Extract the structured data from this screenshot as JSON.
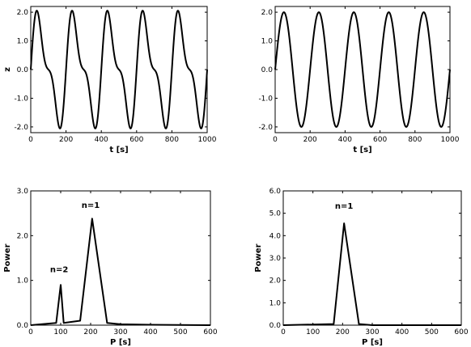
{
  "chart_data": [
    {
      "type": "line",
      "xlabel": "t [s]",
      "ylabel": "z",
      "xlim": [
        0,
        1000
      ],
      "ylim": [
        -2.2,
        2.2
      ],
      "xticks": [
        0,
        200,
        400,
        600,
        800,
        1000
      ],
      "xtick_labels": [
        "0",
        "200",
        "400",
        "600",
        "800",
        "1000"
      ],
      "yticks": [
        -2.0,
        -1.0,
        0.0,
        1.0,
        2.0
      ],
      "ytick_labels": [
        "-2.0",
        "-1.0",
        "0.0",
        "1.0",
        "2.0"
      ],
      "grid": false,
      "series": [
        {
          "components": [
            {
              "amplitude": 1.65,
              "period": 200
            },
            {
              "amplitude": 0.72,
              "period": 100
            }
          ],
          "t_range": [
            0,
            1000
          ]
        }
      ]
    },
    {
      "type": "line",
      "xlabel": "t [s]",
      "ylabel": "",
      "xlim": [
        0,
        1000
      ],
      "ylim": [
        -2.2,
        2.2
      ],
      "xticks": [
        0,
        200,
        400,
        600,
        800,
        1000
      ],
      "xtick_labels": [
        "0",
        "200",
        "400",
        "600",
        "800",
        "1000"
      ],
      "yticks": [
        -2.0,
        -1.0,
        0.0,
        1.0,
        2.0
      ],
      "ytick_labels": [
        "-2.0",
        "-1.0",
        "0.0",
        "1.0",
        "2.0"
      ],
      "grid": false,
      "series": [
        {
          "components": [
            {
              "amplitude": 2.0,
              "period": 200
            }
          ],
          "t_range": [
            0,
            1000
          ]
        }
      ]
    },
    {
      "type": "line",
      "xlabel": "P [s]",
      "ylabel": "Power",
      "xlim": [
        0,
        600
      ],
      "ylim": [
        0,
        3.0
      ],
      "xticks": [
        0,
        100,
        200,
        300,
        400,
        500,
        600
      ],
      "xtick_labels": [
        "0",
        "100",
        "200",
        "300",
        "400",
        "500",
        "600"
      ],
      "yticks": [
        0.0,
        1.0,
        2.0,
        3.0
      ],
      "ytick_labels": [
        "0.0",
        "1.0",
        "2.0",
        "3.0"
      ],
      "grid": false,
      "series": [
        {
          "x": [
            0,
            85,
            100,
            110,
            165,
            205,
            255,
            300,
            400,
            600
          ],
          "y": [
            0,
            0.05,
            0.9,
            0.05,
            0.1,
            2.38,
            0.05,
            0.02,
            0.01,
            0
          ]
        }
      ],
      "annotations": [
        {
          "text": "n=2",
          "x": 95,
          "y": 1.18
        },
        {
          "text": "n=1",
          "x": 200,
          "y": 2.62
        }
      ]
    },
    {
      "type": "line",
      "xlabel": "P [s]",
      "ylabel": "Power",
      "xlim": [
        0,
        600
      ],
      "ylim": [
        0,
        6.0
      ],
      "xticks": [
        0,
        100,
        200,
        300,
        400,
        500,
        600
      ],
      "xtick_labels": [
        "0",
        "100",
        "200",
        "300",
        "400",
        "500",
        "600"
      ],
      "yticks": [
        0.0,
        1.0,
        2.0,
        3.0,
        4.0,
        5.0,
        6.0
      ],
      "ytick_labels": [
        "0.0",
        "1.0",
        "2.0",
        "3.0",
        "4.0",
        "5.0",
        "6.0"
      ],
      "grid": false,
      "series": [
        {
          "x": [
            0,
            170,
            205,
            255,
            300,
            600
          ],
          "y": [
            0,
            0.05,
            4.55,
            0.05,
            0,
            0
          ]
        }
      ],
      "annotations": [
        {
          "text": "n=1",
          "x": 205,
          "y": 5.2
        }
      ]
    }
  ]
}
